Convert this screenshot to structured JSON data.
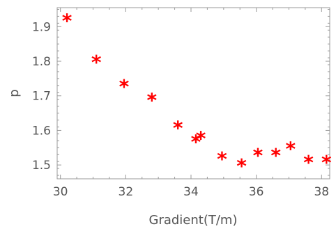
{
  "chart_data": {
    "type": "scatter",
    "xlabel": "Gradient(T/m)",
    "ylabel": "p",
    "xlim": [
      29.9,
      38.25
    ],
    "ylim": [
      1.46,
      1.955
    ],
    "x_ticks": [
      30,
      32,
      34,
      36,
      38
    ],
    "y_ticks": [
      1.5,
      1.6,
      1.7,
      1.8,
      1.9
    ],
    "grid": false,
    "marker": "*",
    "marker_color": "#ff0000",
    "series": [
      {
        "x": [
          30.2,
          31.1,
          31.95,
          32.8,
          33.6,
          34.15,
          34.3,
          34.95,
          35.55,
          36.05,
          36.6,
          37.05,
          37.6,
          38.15
        ],
        "y": [
          1.92,
          1.8,
          1.73,
          1.69,
          1.61,
          1.57,
          1.58,
          1.52,
          1.5,
          1.53,
          1.53,
          1.55,
          1.51,
          1.51
        ]
      }
    ]
  }
}
